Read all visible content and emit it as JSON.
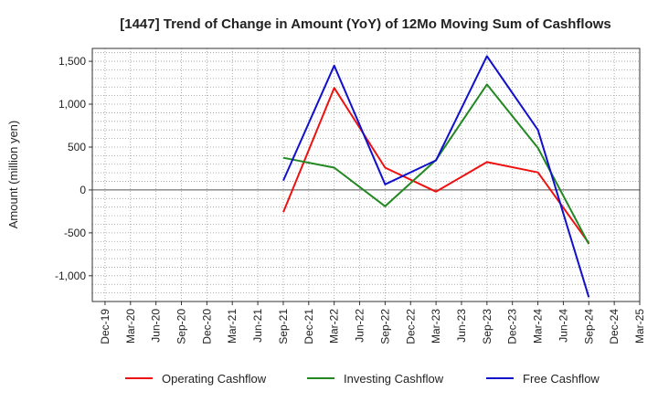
{
  "chart_data": {
    "type": "line",
    "title": "[1447]  Trend of Change in Amount (YoY) of 12Mo Moving Sum of Cashflows",
    "xlabel": "",
    "ylabel": "Amount (million yen)",
    "ylim": [
      -1300,
      1650
    ],
    "yticks": [
      -1000,
      -500,
      0,
      500,
      1000,
      1500
    ],
    "ytick_labels": [
      "-1,000",
      "-500",
      "0",
      "500",
      "1,000",
      "1,500"
    ],
    "categories": [
      "Dec-19",
      "Mar-20",
      "Jun-20",
      "Sep-20",
      "Dec-20",
      "Mar-21",
      "Jun-21",
      "Sep-21",
      "Dec-21",
      "Mar-22",
      "Jun-22",
      "Sep-22",
      "Dec-22",
      "Mar-23",
      "Jun-23",
      "Sep-23",
      "Dec-23",
      "Mar-24",
      "Jun-24",
      "Sep-24",
      "Dec-24",
      "Mar-25"
    ],
    "grid": true,
    "legend_position": "bottom",
    "series": [
      {
        "name": "Operating Cashflow",
        "color": "#ee1111",
        "values": [
          null,
          null,
          null,
          null,
          null,
          null,
          null,
          -260,
          null,
          1190,
          null,
          260,
          null,
          -20,
          null,
          325,
          null,
          205,
          null,
          -620,
          null,
          null
        ]
      },
      {
        "name": "Investing Cashflow",
        "color": "#228822",
        "values": [
          null,
          null,
          null,
          null,
          null,
          null,
          null,
          375,
          null,
          260,
          null,
          -190,
          null,
          350,
          null,
          1230,
          null,
          490,
          null,
          -630,
          null,
          null
        ]
      },
      {
        "name": "Free Cashflow",
        "color": "#1111cc",
        "values": [
          null,
          null,
          null,
          null,
          null,
          null,
          null,
          110,
          null,
          1450,
          null,
          65,
          null,
          345,
          null,
          1560,
          null,
          700,
          null,
          -1250,
          null,
          null
        ]
      }
    ]
  }
}
